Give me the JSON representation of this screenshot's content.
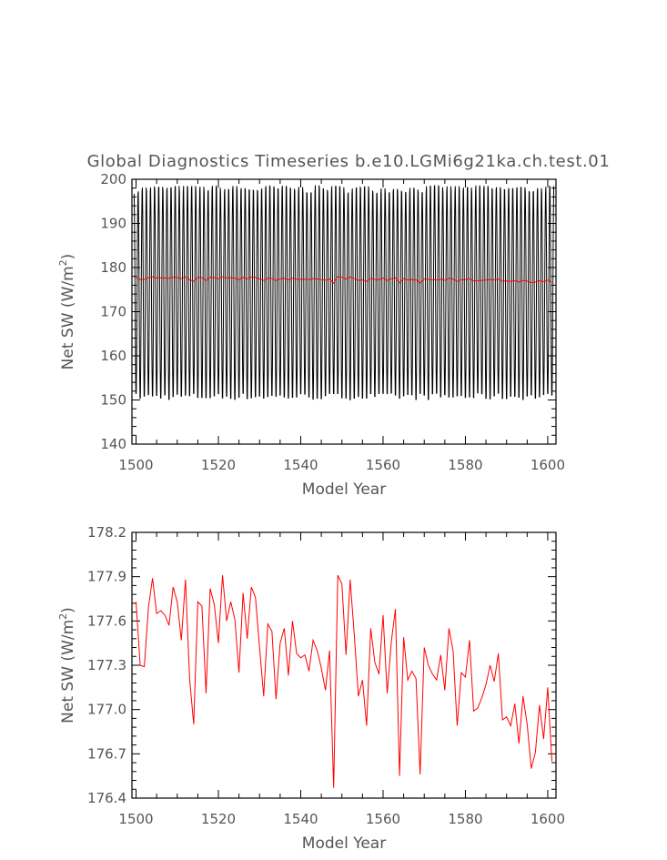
{
  "title": "Global Diagnostics Timeseries b.e10.LGMi6g21ka.ch.test.01",
  "chart_data": [
    {
      "type": "line",
      "xlabel": "Model Year",
      "ylabel_main": "Net SW (W/m",
      "ylabel_sup": "2",
      "ylabel_close": ")",
      "xlim": [
        1499,
        1602
      ],
      "ylim": [
        140,
        200
      ],
      "xticks": [
        "1500",
        "1520",
        "1540",
        "1560",
        "1580",
        "1600"
      ],
      "yticks": [
        "140",
        "150",
        "160",
        "170",
        "180",
        "190",
        "200"
      ],
      "series": [
        {
          "color": "#000000",
          "description": "monthly values oscillating annually",
          "annual_cycle": {
            "start_year": 1499.5,
            "months_per_year": 12,
            "min_approx": 150,
            "max_approx": 198.5
          }
        },
        {
          "color": "#ff0000",
          "description": "annual mean",
          "x": [
            1500,
            1501,
            1502,
            1503,
            1504,
            1505,
            1506,
            1507,
            1508,
            1509,
            1510,
            1511,
            1512,
            1513,
            1514,
            1515,
            1516,
            1517,
            1518,
            1519,
            1520,
            1521,
            1522,
            1523,
            1524,
            1525,
            1526,
            1527,
            1528,
            1529,
            1530,
            1531,
            1532,
            1533,
            1534,
            1535,
            1536,
            1537,
            1538,
            1539,
            1540,
            1541,
            1542,
            1543,
            1544,
            1545,
            1546,
            1547,
            1548,
            1549,
            1550,
            1551,
            1552,
            1553,
            1554,
            1555,
            1556,
            1557,
            1558,
            1559,
            1560,
            1561,
            1562,
            1563,
            1564,
            1565,
            1566,
            1567,
            1568,
            1569,
            1570,
            1571,
            1572,
            1573,
            1574,
            1575,
            1576,
            1577,
            1578,
            1579,
            1580,
            1581,
            1582,
            1583,
            1584,
            1585,
            1586,
            1587,
            1588,
            1589,
            1590,
            1591,
            1592,
            1593,
            1594,
            1595,
            1596,
            1597,
            1598,
            1599,
            1600,
            1601
          ],
          "y": [
            177.73,
            177.3,
            177.29,
            177.69,
            177.89,
            177.65,
            177.67,
            177.64,
            177.57,
            177.83,
            177.73,
            177.47,
            177.88,
            177.21,
            176.9,
            177.73,
            177.7,
            177.11,
            177.82,
            177.71,
            177.45,
            177.91,
            177.6,
            177.73,
            177.61,
            177.25,
            177.79,
            177.48,
            177.83,
            177.76,
            177.42,
            177.09,
            177.58,
            177.53,
            177.07,
            177.45,
            177.55,
            177.23,
            177.6,
            177.38,
            177.35,
            177.37,
            177.26,
            177.47,
            177.4,
            177.28,
            177.13,
            177.4,
            176.47,
            177.91,
            177.85,
            177.37,
            177.88,
            177.51,
            177.09,
            177.2,
            176.89,
            177.55,
            177.32,
            177.24,
            177.64,
            177.11,
            177.46,
            177.68,
            176.55,
            177.49,
            177.2,
            177.26,
            177.21,
            176.56,
            177.42,
            177.3,
            177.24,
            177.2,
            177.37,
            177.13,
            177.55,
            177.4,
            176.89,
            177.25,
            177.22,
            177.47,
            176.99,
            177.01,
            177.08,
            177.17,
            177.3,
            177.19,
            177.38,
            176.93,
            176.95,
            176.89,
            177.04,
            176.77,
            177.09,
            176.9,
            176.6,
            176.71,
            177.03,
            176.8,
            177.15,
            176.65
          ]
        }
      ]
    },
    {
      "type": "line",
      "xlabel": "Model Year",
      "ylabel_main": "Net SW (W/m",
      "ylabel_sup": "2",
      "ylabel_close": ")",
      "xlim": [
        1499,
        1602
      ],
      "ylim": [
        176.4,
        178.2
      ],
      "xticks": [
        "1500",
        "1520",
        "1540",
        "1560",
        "1580",
        "1600"
      ],
      "yticks": [
        "176.4",
        "176.7",
        "177.0",
        "177.3",
        "177.6",
        "177.9",
        "178.2"
      ],
      "series": [
        {
          "color": "#ff0000",
          "description": "annual mean (same as upper red series)"
        }
      ]
    }
  ]
}
